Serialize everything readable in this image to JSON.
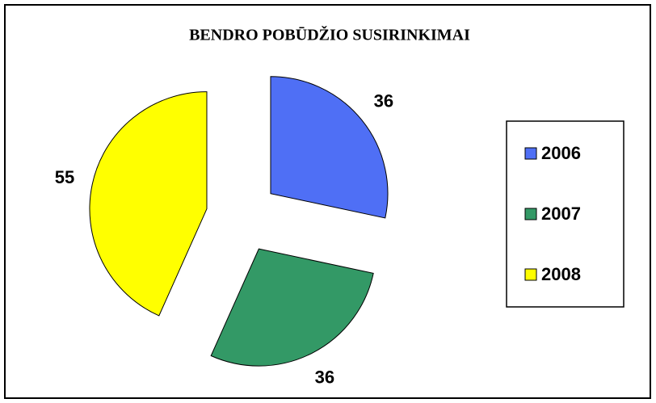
{
  "chart_data": {
    "type": "pie",
    "title": "BENDRO POBŪDŽIO SUSIRINKIMAI",
    "categories": [
      "2006",
      "2007",
      "2008"
    ],
    "values": [
      36,
      36,
      55
    ],
    "colors": [
      "#4f6ff5",
      "#339966",
      "#ffff00"
    ],
    "exploded": true,
    "legend": "right"
  }
}
